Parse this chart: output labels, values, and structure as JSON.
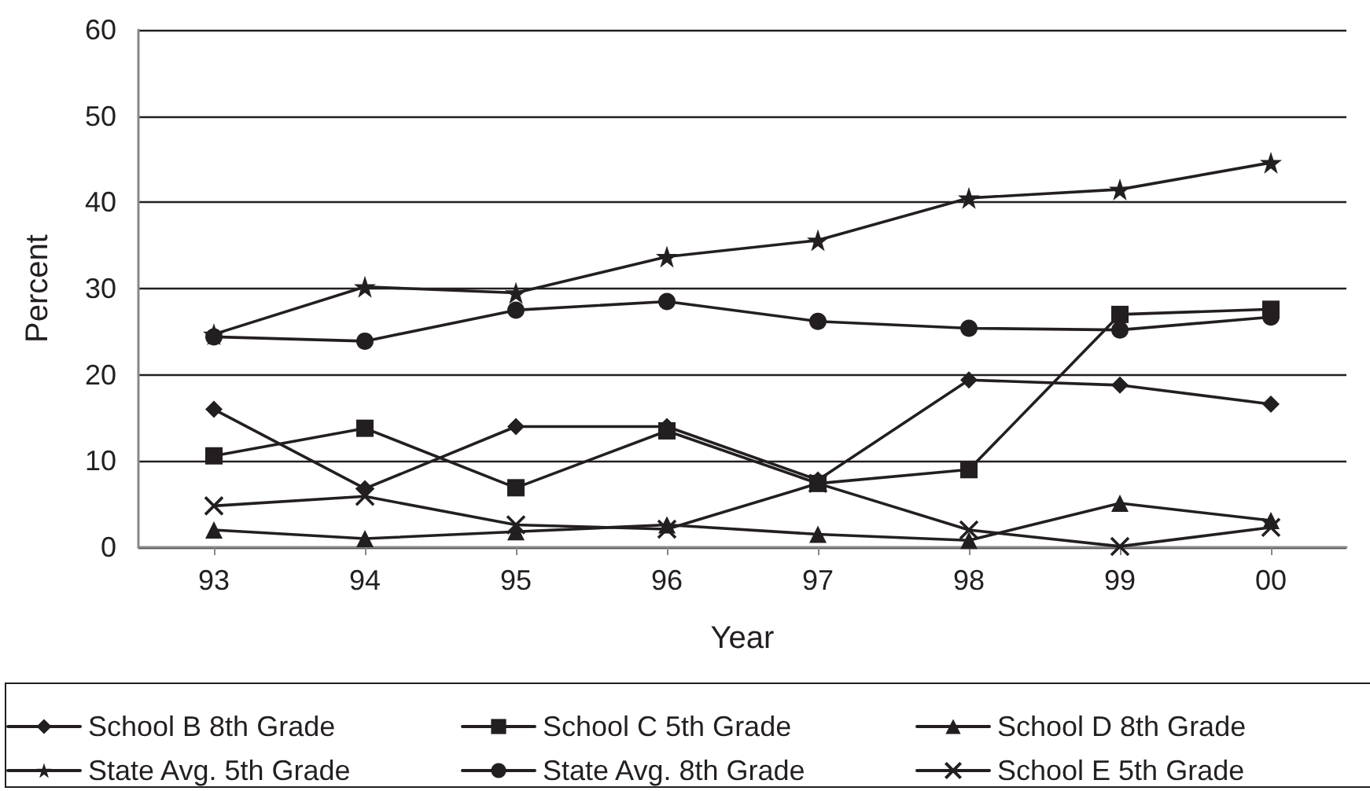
{
  "chart_data": {
    "type": "line",
    "xlabel": "Year",
    "ylabel": "Percent",
    "categories": [
      "93",
      "94",
      "95",
      "96",
      "97",
      "98",
      "99",
      "00"
    ],
    "ylim": [
      0,
      60
    ],
    "yticks": [
      0,
      10,
      20,
      30,
      40,
      50,
      60
    ],
    "grid": "y",
    "legend": "bottom",
    "series": [
      {
        "name": "School B 8th Grade",
        "color": "#231f20",
        "marker": "diamond",
        "values": [
          16,
          6.8,
          14,
          14,
          7.8,
          19.4,
          18.8,
          16.6
        ]
      },
      {
        "name": "School C 5th Grade",
        "color": "#231f20",
        "marker": "square",
        "values": [
          10.6,
          13.8,
          6.9,
          13.5,
          7.4,
          9,
          27,
          27.6
        ]
      },
      {
        "name": "School D 8th Grade",
        "color": "#231f20",
        "marker": "triangle",
        "values": [
          2,
          1,
          1.8,
          2.6,
          1.5,
          0.8,
          5.1,
          3.1
        ]
      },
      {
        "name": "State Avg. 5th Grade",
        "color": "#231f20",
        "marker": "star",
        "values": [
          24.7,
          30.2,
          29.5,
          33.7,
          35.6,
          40.5,
          41.5,
          44.6
        ]
      },
      {
        "name": "State Avg. 8th Grade",
        "color": "#231f20",
        "marker": "circle",
        "values": [
          24.4,
          23.9,
          27.5,
          28.5,
          26.2,
          25.4,
          25.2,
          26.7
        ]
      },
      {
        "name": "School E 5th Grade",
        "color": "#231f20",
        "marker": "cross",
        "values": [
          4.8,
          5.9,
          2.6,
          2.1,
          7.4,
          2,
          0.1,
          2.3
        ]
      }
    ]
  }
}
